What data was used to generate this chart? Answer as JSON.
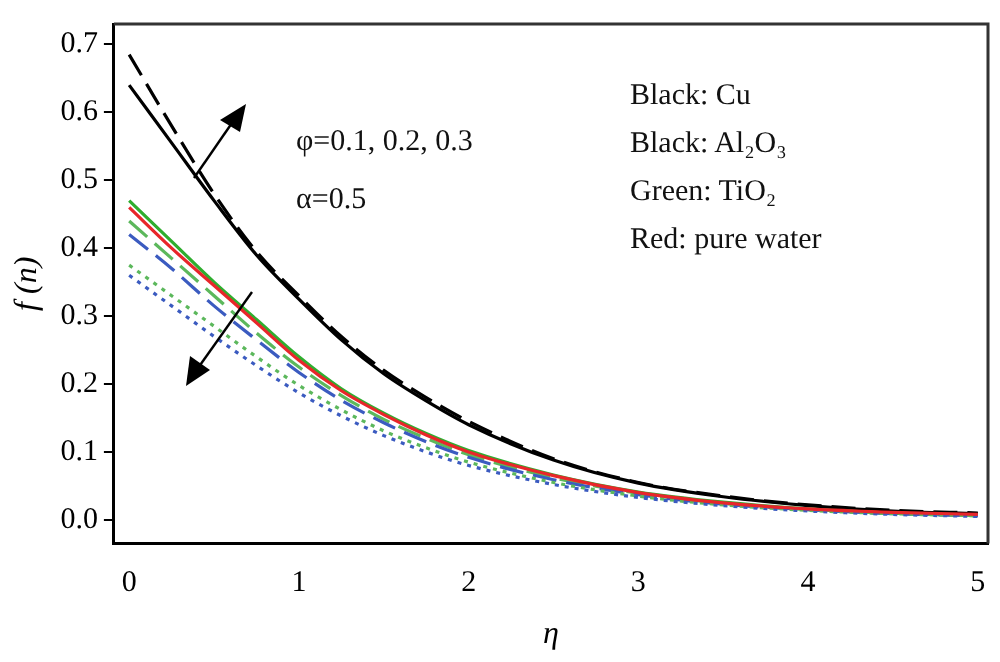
{
  "chart_data": {
    "type": "line",
    "xlabel": "η",
    "ylabel": "f (n)",
    "x": [
      0,
      0.25,
      0.5,
      0.75,
      1,
      1.25,
      1.5,
      1.75,
      2,
      2.5,
      3,
      3.5,
      4,
      4.5,
      5
    ],
    "series": [
      {
        "color": "#000000",
        "line_style": "dashed",
        "values": [
          0.685,
          0.58,
          0.48,
          0.395,
          0.33,
          0.27,
          0.22,
          0.18,
          0.145,
          0.09,
          0.055,
          0.035,
          0.022,
          0.014,
          0.01
        ]
      },
      {
        "color": "#000000",
        "line_style": "solid",
        "values": [
          0.64,
          0.555,
          0.47,
          0.39,
          0.325,
          0.265,
          0.215,
          0.175,
          0.14,
          0.088,
          0.054,
          0.034,
          0.021,
          0.013,
          0.009
        ]
      },
      {
        "color": "#2fae2f",
        "line_style": "solid",
        "values": [
          0.47,
          0.41,
          0.35,
          0.295,
          0.24,
          0.193,
          0.157,
          0.127,
          0.102,
          0.066,
          0.041,
          0.026,
          0.016,
          0.01,
          0.007
        ]
      },
      {
        "color": "#5cb85c",
        "line_style": "dashed",
        "values": [
          0.44,
          0.385,
          0.33,
          0.275,
          0.225,
          0.183,
          0.148,
          0.12,
          0.096,
          0.062,
          0.039,
          0.024,
          0.015,
          0.01,
          0.006
        ]
      },
      {
        "color": "#3b5bc0",
        "line_style": "dashed",
        "values": [
          0.42,
          0.37,
          0.315,
          0.265,
          0.217,
          0.176,
          0.143,
          0.115,
          0.092,
          0.059,
          0.037,
          0.023,
          0.015,
          0.009,
          0.006
        ]
      },
      {
        "color": "#5cb85c",
        "line_style": "dotted",
        "values": [
          0.375,
          0.33,
          0.285,
          0.24,
          0.198,
          0.162,
          0.131,
          0.106,
          0.085,
          0.055,
          0.035,
          0.022,
          0.014,
          0.009,
          0.006
        ]
      },
      {
        "color": "#3b5bc0",
        "line_style": "dotted",
        "values": [
          0.36,
          0.315,
          0.27,
          0.227,
          0.187,
          0.153,
          0.124,
          0.1,
          0.08,
          0.052,
          0.033,
          0.021,
          0.013,
          0.008,
          0.005
        ]
      },
      {
        "color": "#e8262a",
        "line_style": "solid",
        "values": [
          0.46,
          0.4,
          0.345,
          0.29,
          0.235,
          0.19,
          0.155,
          0.125,
          0.1,
          0.065,
          0.04,
          0.025,
          0.016,
          0.011,
          0.008
        ]
      }
    ],
    "xlim": [
      -0.09,
      5.06
    ],
    "xticks": [
      0,
      1,
      2,
      3,
      4,
      5
    ],
    "ylim": [
      -0.035,
      0.73
    ],
    "yticks": [
      {
        "value": 0,
        "label": "0.0"
      },
      0.1,
      0.2,
      0.3,
      0.4,
      0.5,
      0.6,
      0.7
    ],
    "grid": false,
    "legend": false,
    "marker": "none",
    "annotations": [
      "φ=0.1, 0.2, 0.3",
      "α=0.5",
      "Black: Cu",
      "Black: Al₂O₃",
      "Green: TiO₂",
      "Red: pure water"
    ]
  }
}
